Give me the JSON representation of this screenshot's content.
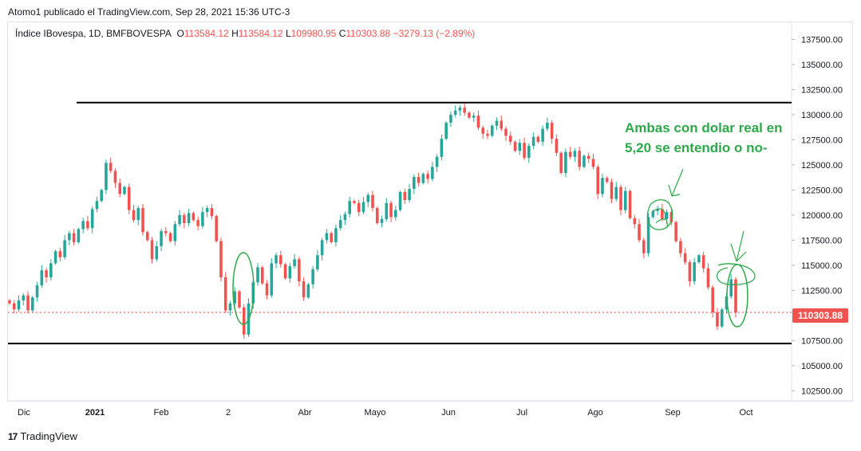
{
  "header": {
    "publisher_line": "Atomo1 publicado el TradingView.com, Sep 28, 2021 15:36 UTC-3"
  },
  "legend": {
    "symbol": "Índice IBovespa, 1D, BMFBOVESPA",
    "open_label": "O",
    "open": "113584.12",
    "high_label": "H",
    "high": "113584.12",
    "low_label": "L",
    "low": "109980.95",
    "close_label": "C",
    "close": "110303.88",
    "change": "−3279.13 (−2.89%)"
  },
  "annotation": {
    "line1": "Ambas con dolar real en",
    "line2": "5,20 se entendio o no-"
  },
  "last_price_tag": "110303.88",
  "footer": {
    "logo_mark": "17",
    "brand": "TradingView"
  },
  "colors": {
    "up": "#26a69a",
    "down": "#ef5350",
    "annotation": "#2ea84a",
    "last_price": "#ef5350"
  },
  "chart_data": {
    "type": "candlestick",
    "title": "Índice IBovespa, 1D, BMFBOVESPA",
    "x_tick_labels": [
      "Dic",
      "2021",
      "Feb",
      "2",
      "Abr",
      "Mayo",
      "Jun",
      "Jul",
      "Ago",
      "Sep",
      "Oct"
    ],
    "y_tick_labels": [
      "137500.00",
      "135000.00",
      "132500.00",
      "130000.00",
      "127500.00",
      "125000.00",
      "122500.00",
      "120000.00",
      "117500.00",
      "115000.00",
      "112500.00",
      "107500.00",
      "105000.00",
      "102500.00"
    ],
    "ylim": [
      101500,
      139200
    ],
    "resistance_level": 131200,
    "support_level": 107200,
    "last_close": 110303.88,
    "closes": [
      111200,
      110600,
      111500,
      112000,
      110500,
      111800,
      113000,
      114500,
      113800,
      115200,
      116400,
      115800,
      117500,
      118200,
      117300,
      118600,
      119400,
      118700,
      120600,
      121400,
      122500,
      125200,
      124400,
      123200,
      122100,
      122800,
      120500,
      119500,
      120700,
      118300,
      117500,
      115600,
      116900,
      118400,
      118200,
      117400,
      119100,
      120000,
      119200,
      120200,
      119500,
      118900,
      120300,
      120700,
      119900,
      117400,
      113800,
      110500,
      111200,
      112400,
      110800,
      108100,
      111200,
      113300,
      114800,
      113200,
      112000,
      115200,
      116000,
      115100,
      113700,
      114900,
      115600,
      113400,
      111800,
      113100,
      114600,
      116000,
      117500,
      118200,
      117300,
      118700,
      119500,
      120100,
      121400,
      121200,
      120300,
      121300,
      122000,
      120700,
      119200,
      119600,
      121200,
      119800,
      120500,
      122300,
      121500,
      122600,
      123800,
      123200,
      124100,
      123600,
      124800,
      125800,
      127600,
      129200,
      130000,
      130400,
      130700,
      130200,
      129700,
      129900,
      128700,
      128100,
      127900,
      128900,
      129400,
      128600,
      127900,
      127300,
      126400,
      127200,
      125700,
      126900,
      127800,
      127300,
      128600,
      129200,
      127600,
      126200,
      124200,
      126300,
      125800,
      126400,
      124800,
      125900,
      125600,
      124800,
      122100,
      123700,
      123300,
      121600,
      122800,
      120500,
      122400,
      119700,
      119100,
      117500,
      116200,
      119800,
      120400,
      120600,
      119600,
      120300,
      119300,
      117400,
      116200,
      115300,
      113400,
      115300,
      116000,
      114700,
      112800,
      110300,
      108900,
      110600,
      111900,
      113600,
      110303.88
    ]
  }
}
